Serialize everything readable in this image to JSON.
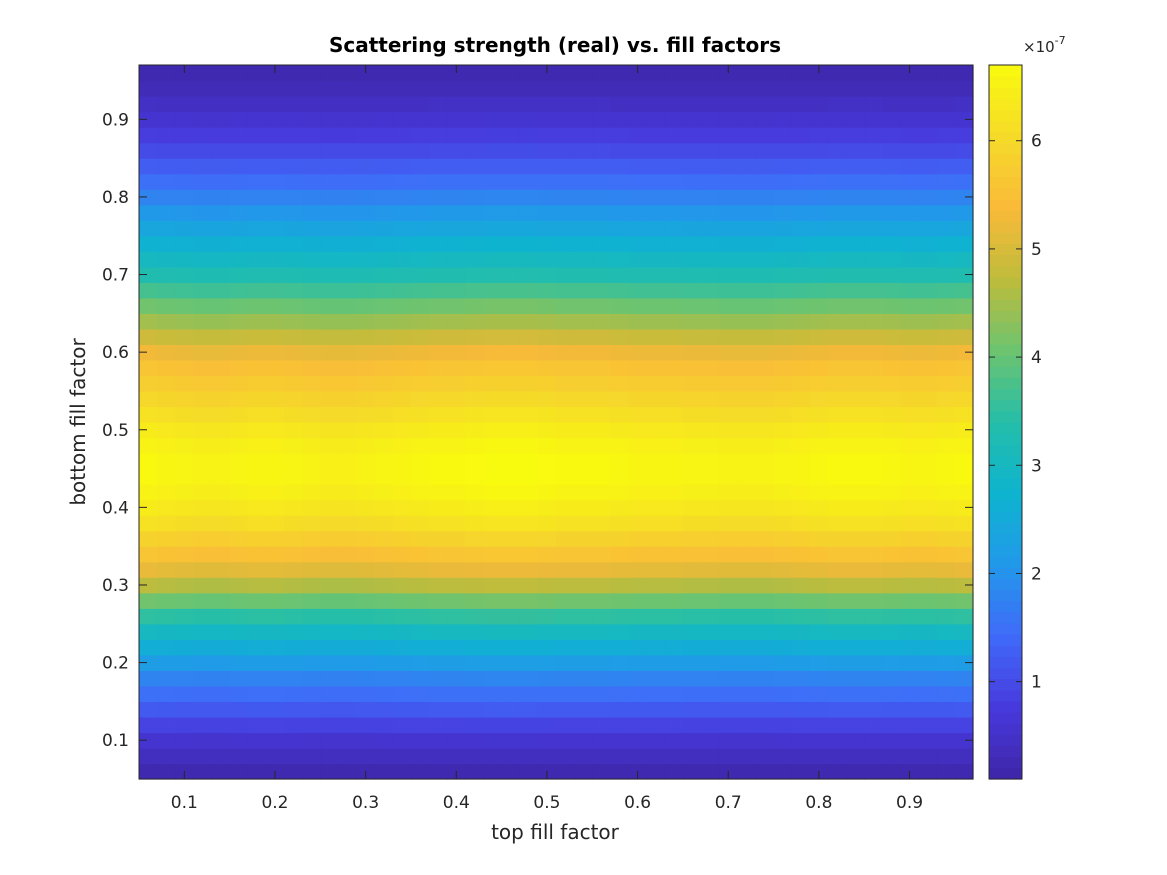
{
  "chart_data": {
    "type": "heatmap",
    "title": "Scattering strength (real) vs. fill factors",
    "xlabel": "top fill factor",
    "ylabel": "bottom fill factor",
    "xlim": [
      0.05,
      0.97
    ],
    "ylim": [
      0.05,
      0.97
    ],
    "x_ticks": [
      0.1,
      0.2,
      0.3,
      0.4,
      0.5,
      0.6,
      0.7,
      0.8,
      0.9
    ],
    "y_ticks": [
      0.1,
      0.2,
      0.3,
      0.4,
      0.5,
      0.6,
      0.7,
      0.8,
      0.9
    ],
    "x_tick_labels": [
      "0.1",
      "0.2",
      "0.3",
      "0.4",
      "0.5",
      "0.6",
      "0.7",
      "0.8",
      "0.9"
    ],
    "y_tick_labels": [
      "0.1",
      "0.2",
      "0.3",
      "0.4",
      "0.5",
      "0.6",
      "0.7",
      "0.8",
      "0.9"
    ],
    "colormap": "parula",
    "colorbar": {
      "min": 0.1,
      "max": 6.7,
      "ticks": [
        1,
        2,
        3,
        4,
        5,
        6
      ],
      "tick_labels": [
        "1",
        "2",
        "3",
        "4",
        "5",
        "6"
      ],
      "exponent_label": "×10",
      "exponent_power": "-7",
      "position": "right"
    },
    "x": [
      0.06,
      0.08,
      0.1,
      0.12,
      0.14,
      0.16,
      0.18,
      0.2,
      0.22,
      0.24,
      0.26,
      0.28,
      0.3,
      0.32,
      0.34,
      0.36,
      0.38,
      0.4,
      0.42,
      0.44,
      0.46,
      0.48,
      0.5,
      0.52,
      0.54,
      0.56,
      0.58,
      0.6,
      0.62,
      0.64,
      0.66,
      0.68,
      0.7,
      0.72,
      0.74,
      0.76,
      0.78,
      0.8,
      0.82,
      0.84,
      0.86,
      0.88,
      0.9,
      0.92,
      0.94,
      0.96
    ],
    "y": [
      0.06,
      0.08,
      0.1,
      0.12,
      0.14,
      0.16,
      0.18,
      0.2,
      0.22,
      0.24,
      0.26,
      0.28,
      0.3,
      0.32,
      0.34,
      0.36,
      0.38,
      0.4,
      0.42,
      0.44,
      0.46,
      0.48,
      0.5,
      0.52,
      0.54,
      0.56,
      0.58,
      0.6,
      0.62,
      0.64,
      0.66,
      0.68,
      0.7,
      0.72,
      0.74,
      0.76,
      0.78,
      0.8,
      0.82,
      0.84,
      0.86,
      0.88,
      0.9,
      0.92,
      0.94,
      0.96
    ],
    "row_profile": [
      0.2,
      0.4,
      0.6,
      0.9,
      1.2,
      1.5,
      1.8,
      2.2,
      2.6,
      3.0,
      3.5,
      4.1,
      4.7,
      5.2,
      5.6,
      5.9,
      6.2,
      6.4,
      6.55,
      6.65,
      6.65,
      6.55,
      6.4,
      6.2,
      6.0,
      5.8,
      5.6,
      5.3,
      4.9,
      4.5,
      4.1,
      3.7,
      3.3,
      3.0,
      2.7,
      2.4,
      2.1,
      1.8,
      1.5,
      1.25,
      1.0,
      0.8,
      0.6,
      0.45,
      0.3,
      0.2
    ],
    "column_modulation": [
      1.0,
      0.99,
      0.985,
      0.98,
      0.98,
      0.985,
      0.99,
      0.99,
      0.985,
      0.98,
      0.975,
      0.975,
      0.98,
      0.985,
      0.99,
      0.995,
      1.0,
      1.0,
      1.005,
      1.01,
      1.01,
      1.01,
      1.005,
      1.0,
      1.0,
      1.0,
      0.995,
      0.99,
      0.99,
      0.99,
      0.985,
      0.985,
      0.98,
      0.98,
      0.98,
      0.985,
      0.99,
      0.995,
      1.0,
      1.0,
      1.0,
      0.995,
      0.99,
      0.99,
      0.995,
      1.0
    ],
    "value_units": "×10^-7"
  }
}
